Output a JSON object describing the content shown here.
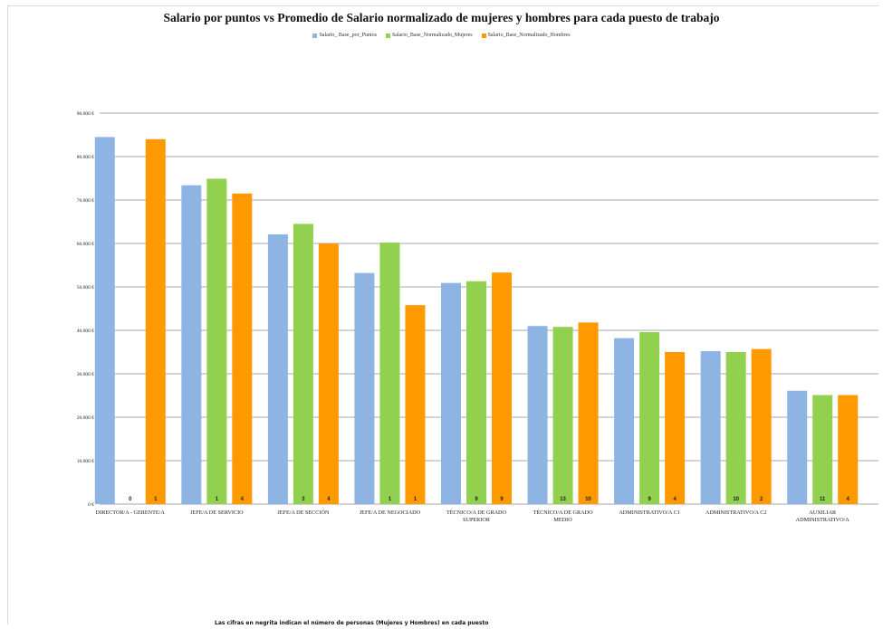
{
  "chart_data": {
    "type": "bar",
    "title": "Salario por puntos vs Promedio de Salario normalizado de mujeres y hombres para cada puesto de trabajo",
    "categories": [
      [
        "DIRECTOR/A - GERENTE/A"
      ],
      [
        "JEFE/A DE SERVICIO"
      ],
      [
        "JEFE/A DE SECCIÓN"
      ],
      [
        "JEFE/A DE NEGOCIADO"
      ],
      [
        "TÉCNICO/A DE GRADO",
        "SUPERIOR"
      ],
      [
        "TÉCNICO/A DE GRADO",
        "MEDIO"
      ],
      [
        "ADMINISTRATIVO/A C1"
      ],
      [
        "ADMINISTRATIVO/A C2"
      ],
      [
        "AUXILIAR",
        "ADMINISTRATIVO/A"
      ]
    ],
    "series": [
      {
        "name": "Salario_ Base_por_Puntos",
        "color": "#8db4e2",
        "values": [
          84500,
          73400,
          62100,
          53200,
          50900,
          41000,
          38200,
          35200,
          26100
        ],
        "counts": [
          null,
          null,
          null,
          null,
          null,
          null,
          null,
          null,
          null
        ]
      },
      {
        "name": "Salario_Base_Normalizado_Mujeres",
        "color": "#92d050",
        "values": [
          0,
          74900,
          64500,
          60200,
          51300,
          40800,
          39600,
          35000,
          25100
        ],
        "counts": [
          "0",
          "1",
          "3",
          "1",
          "9",
          "13",
          "9",
          "10",
          "11"
        ]
      },
      {
        "name": "Salario_Base_Normalizado_Hombres",
        "color": "#ff9900",
        "values": [
          84000,
          71500,
          60000,
          45800,
          53300,
          41800,
          35000,
          35700,
          25100
        ],
        "counts": [
          "1",
          "4",
          "4",
          "1",
          "9",
          "10",
          "4",
          "2",
          "4"
        ]
      }
    ],
    "ylim": [
      0,
      90000
    ],
    "yticks": [
      0,
      10000,
      20000,
      30000,
      40000,
      50000,
      60000,
      70000,
      80000,
      90000
    ],
    "ytick_labels": [
      "0 €",
      "10.000 €",
      "20.000 €",
      "30.000 €",
      "40.000 €",
      "50.000 €",
      "60.000 €",
      "70.000 €",
      "80.000 €",
      "90.000 €"
    ],
    "grid": true,
    "legend_position": "top-center"
  },
  "footnote": "Las cifras en negrita indican el número de personas (Mujeres y Hombres) en cada puesto"
}
